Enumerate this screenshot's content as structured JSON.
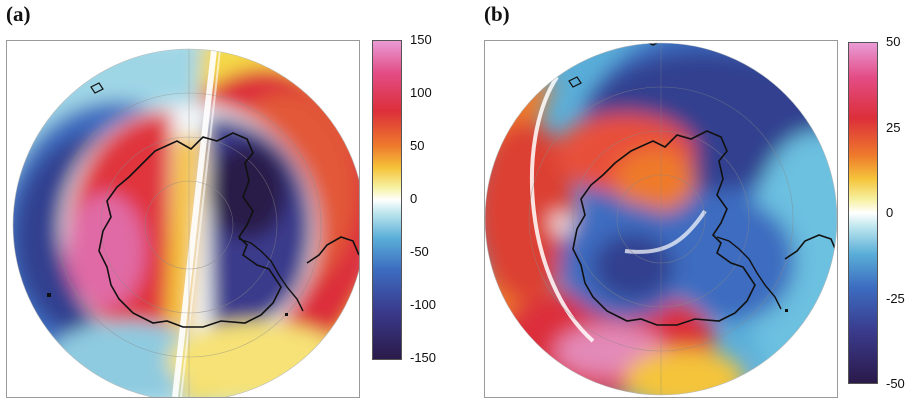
{
  "panels": [
    {
      "label": "(a)",
      "colorbar": {
        "ticks": [
          "150",
          "100",
          "50",
          "0",
          "-50",
          "-100",
          "-150"
        ],
        "min": -150,
        "max": 150
      }
    },
    {
      "label": "(b)",
      "colorbar": {
        "ticks": [
          "50",
          "25",
          "0",
          "-25",
          "-50"
        ],
        "min": -50,
        "max": 50
      }
    }
  ],
  "colorscale": [
    "#2b1a4a",
    "#3a3a8c",
    "#3c6cc0",
    "#5aaed8",
    "#bfe6ee",
    "#ffffff",
    "#f6f1a0",
    "#f5c43a",
    "#ee7a2c",
    "#dc2f3a",
    "#e34d86",
    "#e99bd6"
  ]
}
